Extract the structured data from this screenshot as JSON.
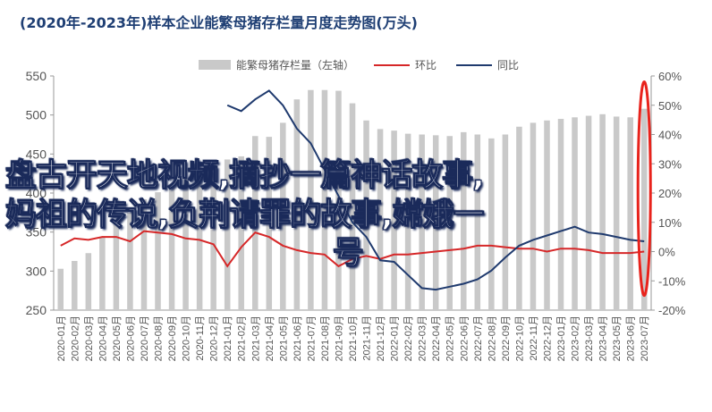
{
  "title": "(2020年-2023年)样本企业能繁母猪存栏量月度走势图(万头)",
  "legend": {
    "bar_label": "能繁母猪存栏量（左轴）",
    "line1_label": "环比",
    "line2_label": "同比"
  },
  "colors": {
    "bar": "#c9c9c9",
    "mom": "#d62728",
    "yoy": "#1f3a6e",
    "highlight": "#e8231c"
  },
  "overlay_text": {
    "line1": "盘古开天地视频,摘抄一篇神话故事,",
    "line2": "妈祖的传说,负荆请罪的故事,嫦娥一",
    "line3": "号"
  },
  "chart_data": {
    "type": "bar",
    "title": "(2020年-2023年)样本企业能繁母猪存栏量月度走势图(万头)",
    "categories": [
      "2020-01月",
      "2020-02月",
      "2020-03月",
      "2020-04月",
      "2020-05月",
      "2020-06月",
      "2020-07月",
      "2020-08月",
      "2020-09月",
      "2020-10月",
      "2020-11月",
      "2020-12月",
      "2021-01月",
      "2021-02月",
      "2021-03月",
      "2021-04月",
      "2021-05月",
      "2021-06月",
      "2021-07月",
      "2021-08月",
      "2021-09月",
      "2021-10月",
      "2021-11月",
      "2021-12月",
      "2022-01月",
      "2022-02月",
      "2022-03月",
      "2022-04月",
      "2022-05月",
      "2022-06月",
      "2022-07月",
      "2022-08月",
      "2022-09月",
      "2022-10月",
      "2022-11月",
      "2022-12月",
      "2023-01月",
      "2023-02月",
      "2023-03月",
      "2023-04月",
      "2023-05月",
      "2023-06月",
      "2023-07月"
    ],
    "left_axis": {
      "min": 250,
      "max": 550,
      "ticks": [
        250,
        300,
        350,
        400,
        450,
        500,
        550
      ]
    },
    "right_axis": {
      "min": -20,
      "max": 60,
      "ticks": [
        "-20%",
        "-10%",
        "0%",
        "10%",
        "20%",
        "30%",
        "40%",
        "50%",
        "60%"
      ]
    },
    "series": [
      {
        "name": "能繁母猪存栏量（左轴）",
        "type": "bar",
        "axis": "left",
        "values": [
          303,
          313,
          323,
          343,
          362,
          375,
          392,
          401,
          410,
          418,
          427,
          437,
          443,
          447,
          473,
          472,
          490,
          520,
          532,
          532,
          531,
          515,
          493,
          482,
          480,
          476,
          475,
          474,
          473,
          478,
          475,
          470,
          475,
          485,
          490,
          493,
          495,
          497,
          499,
          501,
          498,
          497,
          508
        ]
      },
      {
        "name": "环比",
        "type": "line",
        "axis": "right",
        "values": [
          2.0,
          4.5,
          4.0,
          5.0,
          5.0,
          3.5,
          7.0,
          6.5,
          6.0,
          4.5,
          4.0,
          2.5,
          -5.0,
          1.5,
          6.5,
          5.0,
          2.0,
          0.5,
          -0.5,
          -1.0,
          -5.0,
          -2.5,
          -1.5,
          -2.5,
          -1.0,
          -1.0,
          -0.5,
          0.0,
          0.5,
          1.0,
          2.0,
          2.0,
          1.5,
          1.0,
          1.0,
          0.0,
          1.0,
          1.0,
          0.5,
          -0.5,
          -0.5,
          -0.5,
          0.0
        ]
      },
      {
        "name": "同比",
        "type": "line",
        "axis": "right",
        "values": [
          null,
          null,
          null,
          null,
          null,
          null,
          null,
          null,
          null,
          null,
          null,
          null,
          50.0,
          48.0,
          52.0,
          55.0,
          50.0,
          42.0,
          37.0,
          28.0,
          19.0,
          10.0,
          5.0,
          -3.0,
          -3.5,
          -8.0,
          -12.5,
          -13.0,
          -12.0,
          -11.0,
          -9.5,
          -6.5,
          -2.0,
          2.0,
          4.0,
          5.5,
          7.0,
          8.5,
          6.5,
          6.0,
          5.0,
          4.0,
          3.5
        ]
      }
    ]
  }
}
